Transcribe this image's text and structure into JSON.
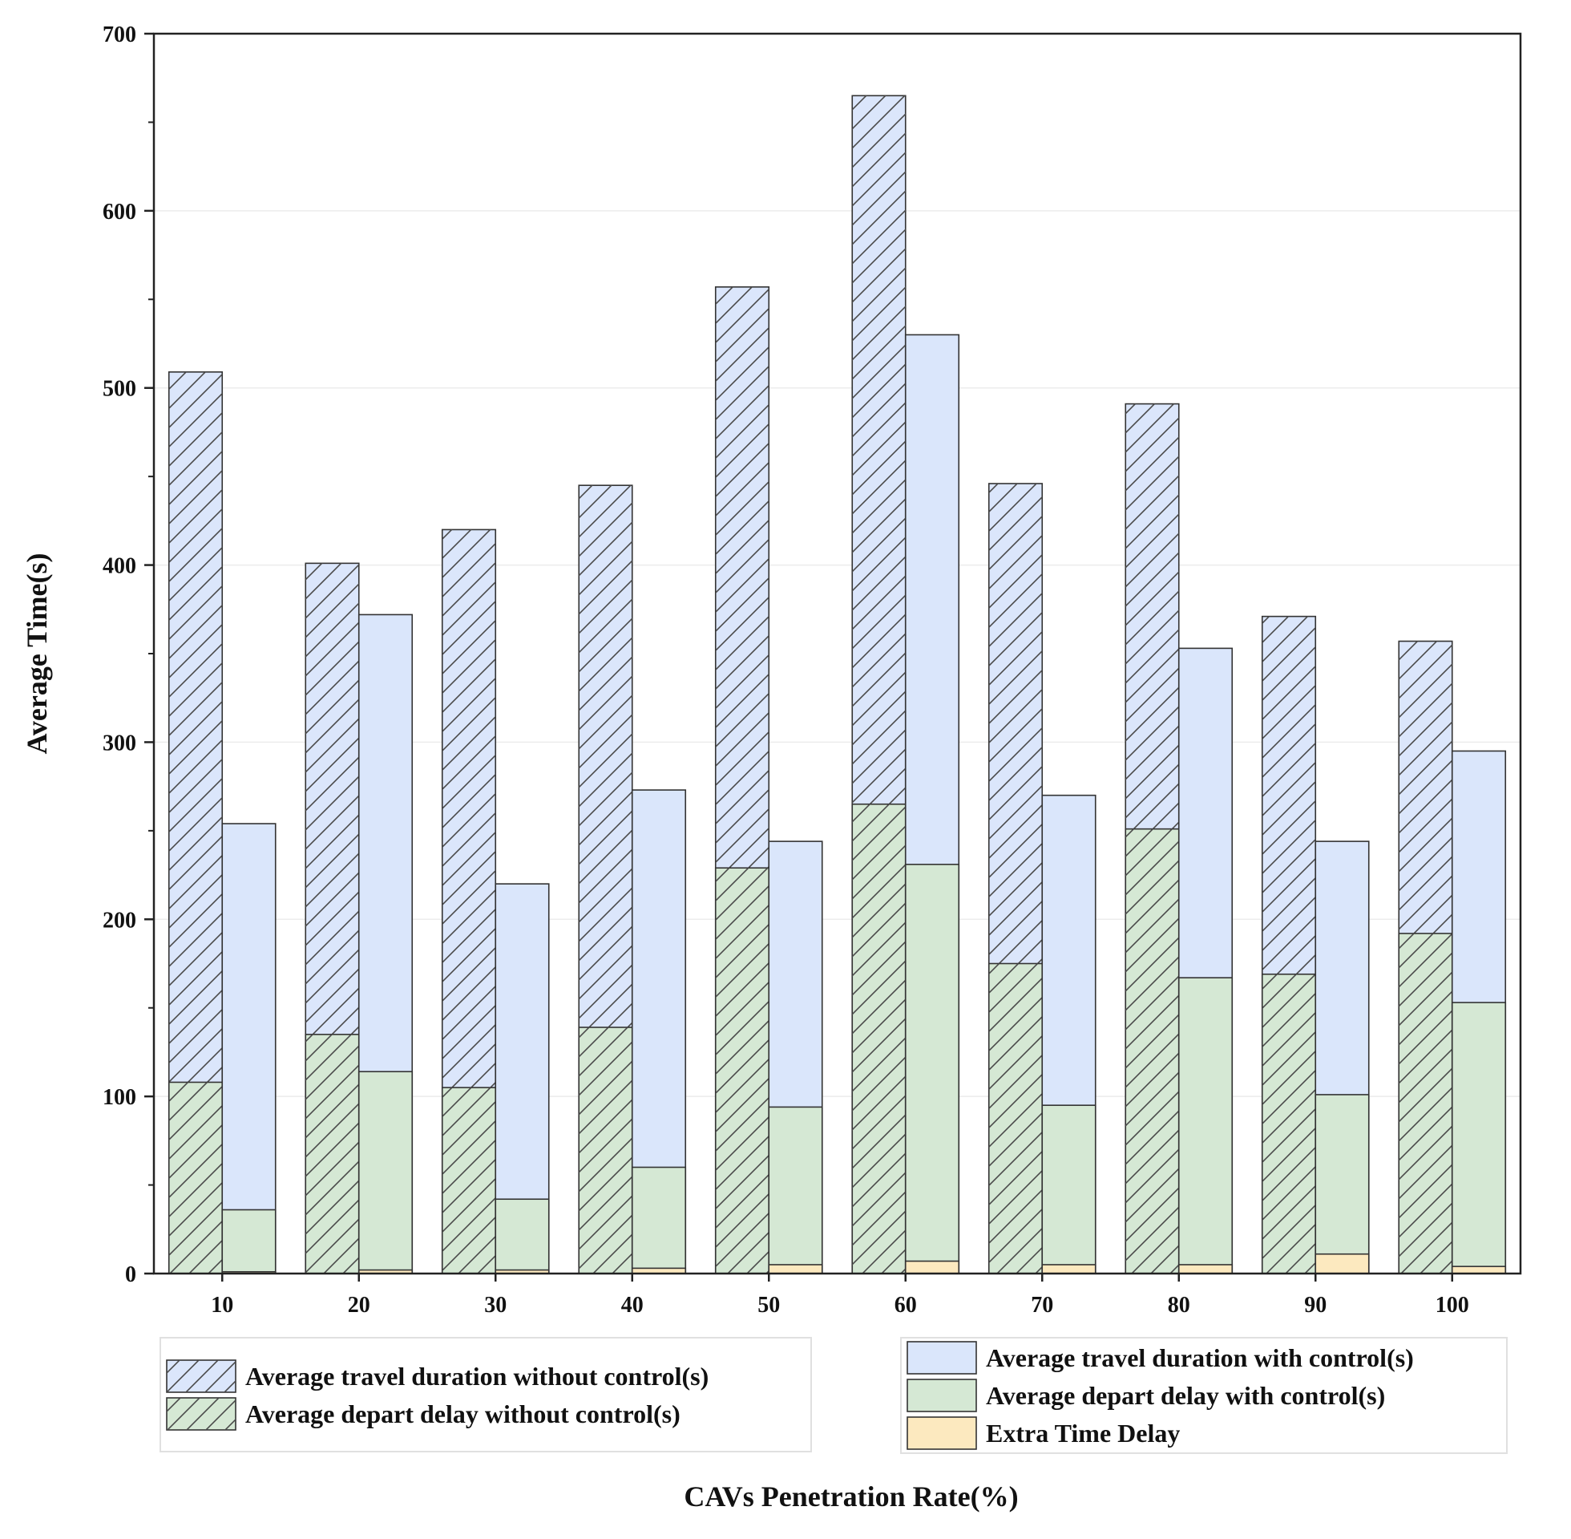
{
  "chart_data": {
    "type": "bar",
    "title": "",
    "xlabel": "CAVs Penetration Rate(%)",
    "ylabel": "Average Time(s)",
    "ylim": [
      0,
      700
    ],
    "yticks": [
      "0",
      "100",
      "200",
      "300",
      "400",
      "500",
      "600",
      "700"
    ],
    "categories": [
      "10",
      "20",
      "30",
      "40",
      "50",
      "60",
      "70",
      "80",
      "90",
      "100"
    ],
    "grid": true,
    "series": [
      {
        "name": "Average travel duration without control(s)",
        "group": "without control",
        "fill": "#dbe6fb",
        "hatch": true,
        "values": [
          509,
          401,
          420,
          445,
          557,
          665,
          446,
          491,
          371,
          357
        ]
      },
      {
        "name": "Average depart delay without control(s)",
        "group": "without control",
        "fill": "#d5e8d4",
        "hatch": true,
        "values": [
          108,
          135,
          105,
          139,
          229,
          265,
          175,
          251,
          169,
          192
        ]
      },
      {
        "name": "Average travel duration with control(s)",
        "group": "with control",
        "fill": "#dae6fb",
        "hatch": false,
        "values": [
          254,
          372,
          220,
          273,
          244,
          530,
          270,
          353,
          244,
          295
        ]
      },
      {
        "name": "Average depart delay with control(s)",
        "group": "with control",
        "fill": "#d5e8d4",
        "hatch": false,
        "values": [
          36,
          114,
          42,
          60,
          94,
          231,
          95,
          167,
          101,
          153
        ]
      },
      {
        "name": "Extra Time Delay",
        "group": "with control",
        "fill": "#fce9bf",
        "hatch": false,
        "values": [
          1,
          2,
          2,
          3,
          5,
          7,
          5,
          5,
          11,
          4
        ]
      }
    ],
    "legend": {
      "left": [
        "Average travel duration without control(s)",
        "Average depart delay without control(s)"
      ],
      "right": [
        "Average travel duration with control(s)",
        "Average depart delay with control(s)",
        "Extra Time Delay"
      ]
    }
  }
}
